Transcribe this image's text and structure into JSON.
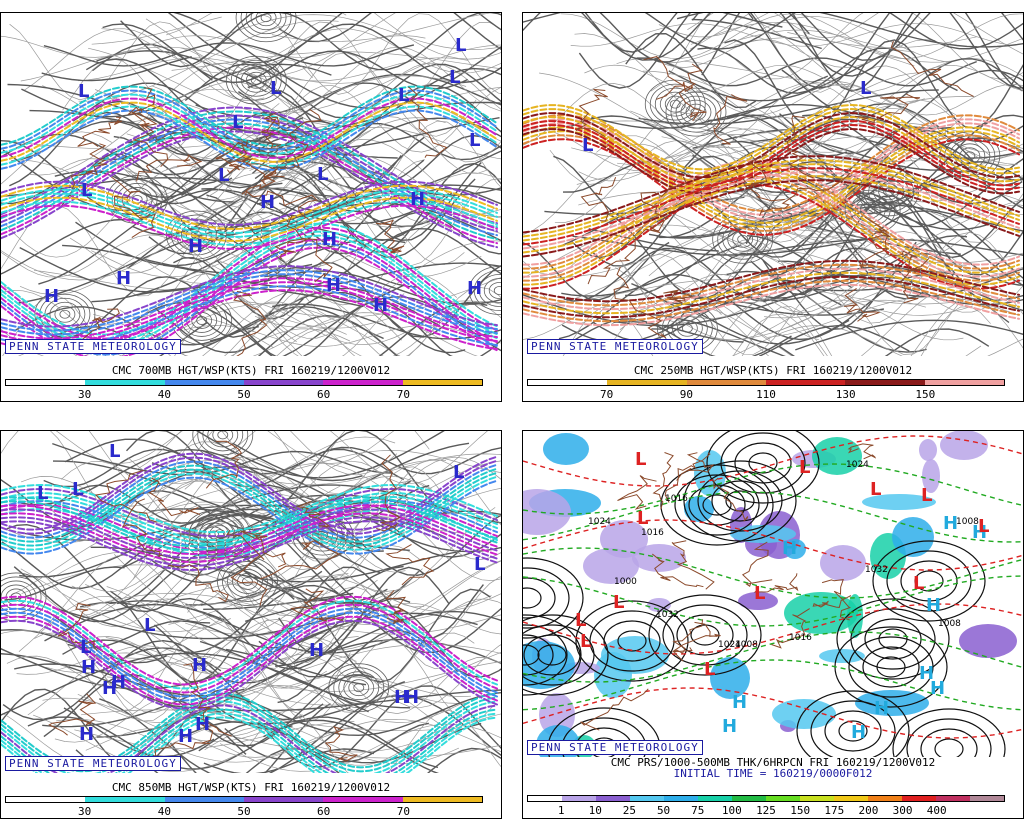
{
  "panels": [
    {
      "id": "p700",
      "brand": "PENN STATE METEOROLOGY",
      "caption": "CMC 700MB HGT/WSP(KTS) FRI 160219/1200V012",
      "legend_colors": [
        "#ffffff",
        "#33dddd",
        "#4488ee",
        "#8844cc",
        "#cc22cc",
        "#eebb22"
      ],
      "legend_labels": [
        "30",
        "40",
        "50",
        "60",
        "70"
      ],
      "highs": 9,
      "lows": 10
    },
    {
      "id": "p250",
      "brand": "PENN STATE METEOROLOGY",
      "caption": "CMC 250MB HGT/WSP(KTS) FRI 160219/1200V012",
      "legend_colors": [
        "#ffffff",
        "#e6b422",
        "#e08a3c",
        "#cc2222",
        "#8a1a1a",
        "#f0a0a0"
      ],
      "legend_labels": [
        "70",
        "90",
        "110",
        "130",
        "150"
      ],
      "highs": 0,
      "lows": 2
    },
    {
      "id": "p850",
      "brand": "PENN STATE METEOROLOGY",
      "caption": "CMC 850MB HGT/WSP(KTS) FRI 160219/1200V012",
      "legend_colors": [
        "#ffffff",
        "#33dddd",
        "#4488ee",
        "#8844cc",
        "#cc22cc",
        "#eebb22"
      ],
      "legend_labels": [
        "30",
        "40",
        "50",
        "60",
        "70"
      ],
      "highs": 10,
      "lows": 7
    },
    {
      "id": "psfc",
      "brand": "PENN STATE METEOROLOGY",
      "caption": "CMC PRS/1000-500MB THK/6HRPCN FRI 160219/1200V012",
      "caption2": "INITIAL TIME = 160219/0000F012",
      "legend_colors": [
        "#ffffff",
        "#b9a4e8",
        "#8a5fd0",
        "#55c8f0",
        "#2eaeea",
        "#17d0a8",
        "#22bb44",
        "#66dd22",
        "#c8e020",
        "#f0c818",
        "#f08018",
        "#e02020",
        "#c03060",
        "#b08898"
      ],
      "legend_labels": [
        "1",
        "10",
        "25",
        "50",
        "75",
        "100",
        "125",
        "150",
        "175",
        "200",
        "300",
        "400"
      ],
      "pressure_labels": [
        "1008",
        "1016",
        "1008",
        "1000",
        "1024",
        "1032",
        "1016",
        "1024",
        "1016",
        "1024",
        "1008",
        "1032"
      ],
      "highs": 10,
      "lows": 12
    }
  ]
}
